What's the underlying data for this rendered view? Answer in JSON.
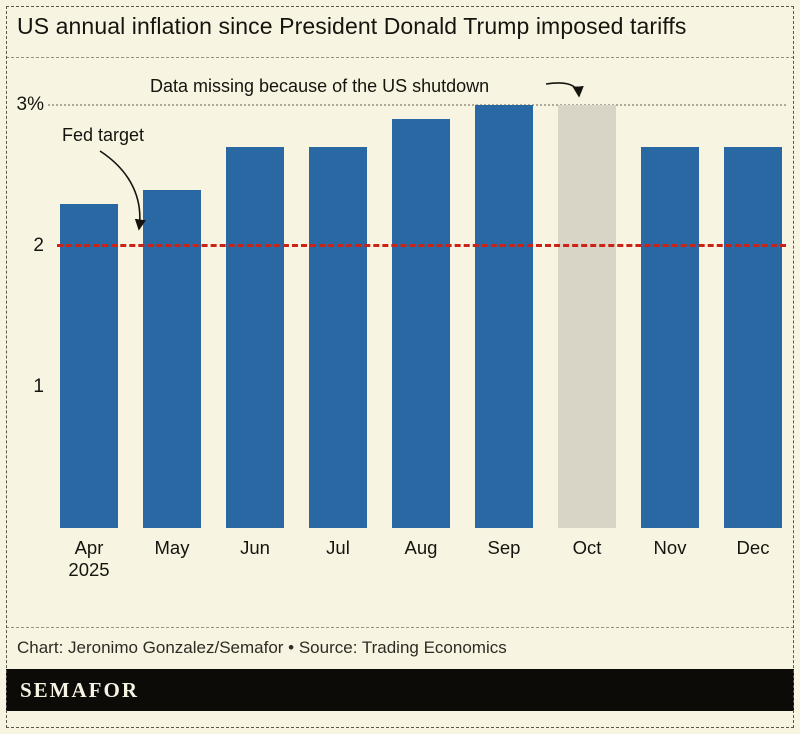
{
  "title": "US annual inflation since President Donald Trump imposed tariffs",
  "chart_data": {
    "type": "bar",
    "categories": [
      "Apr",
      "May",
      "Jun",
      "Jul",
      "Aug",
      "Sep",
      "Oct",
      "Nov",
      "Dec"
    ],
    "values": [
      2.3,
      2.4,
      2.7,
      2.7,
      2.9,
      3.0,
      3.0,
      2.7,
      2.7
    ],
    "missing": [
      false,
      false,
      false,
      false,
      false,
      false,
      true,
      false,
      false
    ],
    "x_sub_label": {
      "index": 0,
      "label": "2025"
    },
    "ylim": [
      0,
      3.15
    ],
    "yticks": [
      {
        "value": 1,
        "label": "1"
      },
      {
        "value": 2,
        "label": "2"
      },
      {
        "value": 3,
        "label": "3%"
      }
    ],
    "fed_target": 2,
    "grid_value": 3,
    "annotations": {
      "fed_target_label": "Fed target",
      "missing_data_label": "Data missing because of the US shutdown"
    },
    "colors": {
      "bar": "#2968a3",
      "missing_bar": "#d8d5c6",
      "target_line": "#cb2317",
      "background": "#f8f4e2"
    },
    "legend": "none",
    "grid": "dotted horizontal at 3%"
  },
  "footer": {
    "credit": "Chart: Jeronimo Gonzalez/Semafor • Source: Trading Economics",
    "logo": "SEMAFOR"
  }
}
